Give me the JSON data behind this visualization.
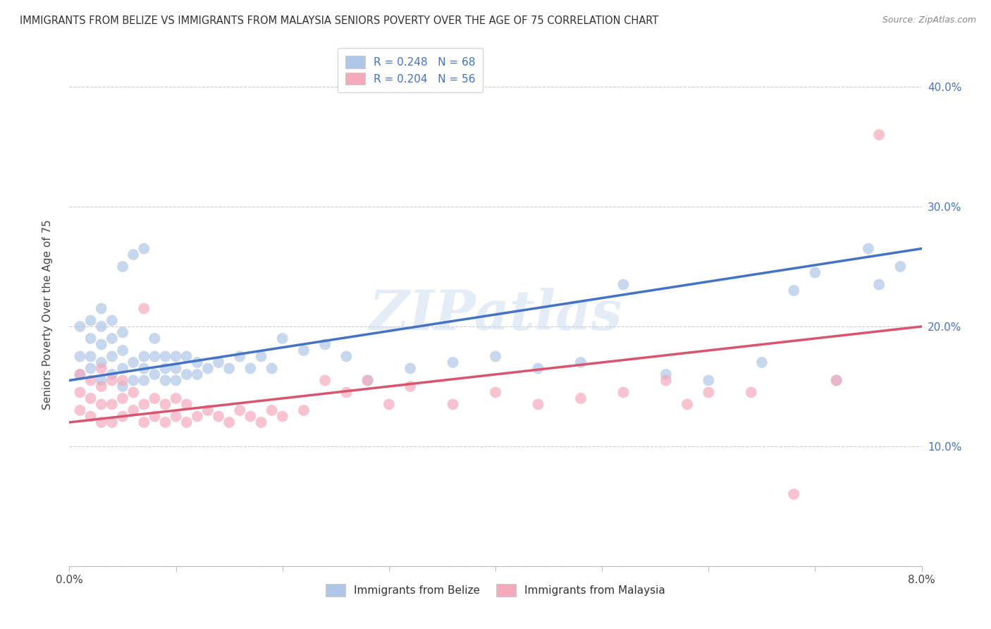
{
  "title": "IMMIGRANTS FROM BELIZE VS IMMIGRANTS FROM MALAYSIA SENIORS POVERTY OVER THE AGE OF 75 CORRELATION CHART",
  "source": "Source: ZipAtlas.com",
  "ylabel": "Seniors Poverty Over the Age of 75",
  "xlim": [
    0.0,
    0.08
  ],
  "ylim": [
    0.0,
    0.42
  ],
  "xticks": [
    0.0,
    0.01,
    0.02,
    0.03,
    0.04,
    0.05,
    0.06,
    0.07,
    0.08
  ],
  "yticks": [
    0.0,
    0.1,
    0.2,
    0.3,
    0.4
  ],
  "xtick_labels": [
    "0.0%",
    "",
    "",
    "",
    "",
    "",
    "",
    "",
    "8.0%"
  ],
  "ytick_labels_left": [
    "",
    "",
    "",
    "",
    ""
  ],
  "ytick_labels_right": [
    "",
    "10.0%",
    "20.0%",
    "30.0%",
    "40.0%"
  ],
  "legend_belize": "R = 0.248   N = 68",
  "legend_malaysia": "R = 0.204   N = 56",
  "color_belize": "#aec6e8",
  "color_malaysia": "#f4aabc",
  "line_color_belize": "#4472c4",
  "line_color_malaysia": "#d9546e",
  "watermark": "ZIPatlas",
  "background_color": "#ffffff",
  "grid_color": "#cccccc",
  "belize_x": [
    0.001,
    0.001,
    0.001,
    0.002,
    0.002,
    0.002,
    0.002,
    0.003,
    0.003,
    0.003,
    0.003,
    0.003,
    0.004,
    0.004,
    0.004,
    0.004,
    0.005,
    0.005,
    0.005,
    0.005,
    0.005,
    0.006,
    0.006,
    0.006,
    0.007,
    0.007,
    0.007,
    0.007,
    0.008,
    0.008,
    0.008,
    0.009,
    0.009,
    0.009,
    0.01,
    0.01,
    0.01,
    0.011,
    0.011,
    0.012,
    0.012,
    0.013,
    0.014,
    0.015,
    0.016,
    0.017,
    0.018,
    0.019,
    0.02,
    0.022,
    0.024,
    0.026,
    0.028,
    0.032,
    0.036,
    0.04,
    0.044,
    0.048,
    0.052,
    0.056,
    0.06,
    0.065,
    0.068,
    0.07,
    0.072,
    0.075,
    0.076,
    0.078
  ],
  "belize_y": [
    0.16,
    0.175,
    0.2,
    0.165,
    0.175,
    0.19,
    0.205,
    0.155,
    0.17,
    0.185,
    0.2,
    0.215,
    0.16,
    0.175,
    0.19,
    0.205,
    0.15,
    0.165,
    0.18,
    0.195,
    0.25,
    0.155,
    0.17,
    0.26,
    0.155,
    0.165,
    0.175,
    0.265,
    0.16,
    0.175,
    0.19,
    0.155,
    0.165,
    0.175,
    0.155,
    0.165,
    0.175,
    0.16,
    0.175,
    0.16,
    0.17,
    0.165,
    0.17,
    0.165,
    0.175,
    0.165,
    0.175,
    0.165,
    0.19,
    0.18,
    0.185,
    0.175,
    0.155,
    0.165,
    0.17,
    0.175,
    0.165,
    0.17,
    0.235,
    0.16,
    0.155,
    0.17,
    0.23,
    0.245,
    0.155,
    0.265,
    0.235,
    0.25
  ],
  "malaysia_x": [
    0.001,
    0.001,
    0.001,
    0.002,
    0.002,
    0.002,
    0.003,
    0.003,
    0.003,
    0.003,
    0.004,
    0.004,
    0.004,
    0.005,
    0.005,
    0.005,
    0.006,
    0.006,
    0.007,
    0.007,
    0.007,
    0.008,
    0.008,
    0.009,
    0.009,
    0.01,
    0.01,
    0.011,
    0.011,
    0.012,
    0.013,
    0.014,
    0.015,
    0.016,
    0.017,
    0.018,
    0.019,
    0.02,
    0.022,
    0.024,
    0.026,
    0.028,
    0.03,
    0.032,
    0.036,
    0.04,
    0.044,
    0.048,
    0.052,
    0.056,
    0.058,
    0.06,
    0.064,
    0.068,
    0.072,
    0.076
  ],
  "malaysia_y": [
    0.13,
    0.145,
    0.16,
    0.125,
    0.14,
    0.155,
    0.12,
    0.135,
    0.15,
    0.165,
    0.12,
    0.135,
    0.155,
    0.125,
    0.14,
    0.155,
    0.13,
    0.145,
    0.12,
    0.135,
    0.215,
    0.125,
    0.14,
    0.12,
    0.135,
    0.125,
    0.14,
    0.12,
    0.135,
    0.125,
    0.13,
    0.125,
    0.12,
    0.13,
    0.125,
    0.12,
    0.13,
    0.125,
    0.13,
    0.155,
    0.145,
    0.155,
    0.135,
    0.15,
    0.135,
    0.145,
    0.135,
    0.14,
    0.145,
    0.155,
    0.135,
    0.145,
    0.145,
    0.06,
    0.155,
    0.36
  ],
  "belize_line_x": [
    0.0,
    0.08
  ],
  "belize_line_y": [
    0.155,
    0.265
  ],
  "malaysia_line_x": [
    0.0,
    0.08
  ],
  "malaysia_line_y": [
    0.12,
    0.2
  ]
}
